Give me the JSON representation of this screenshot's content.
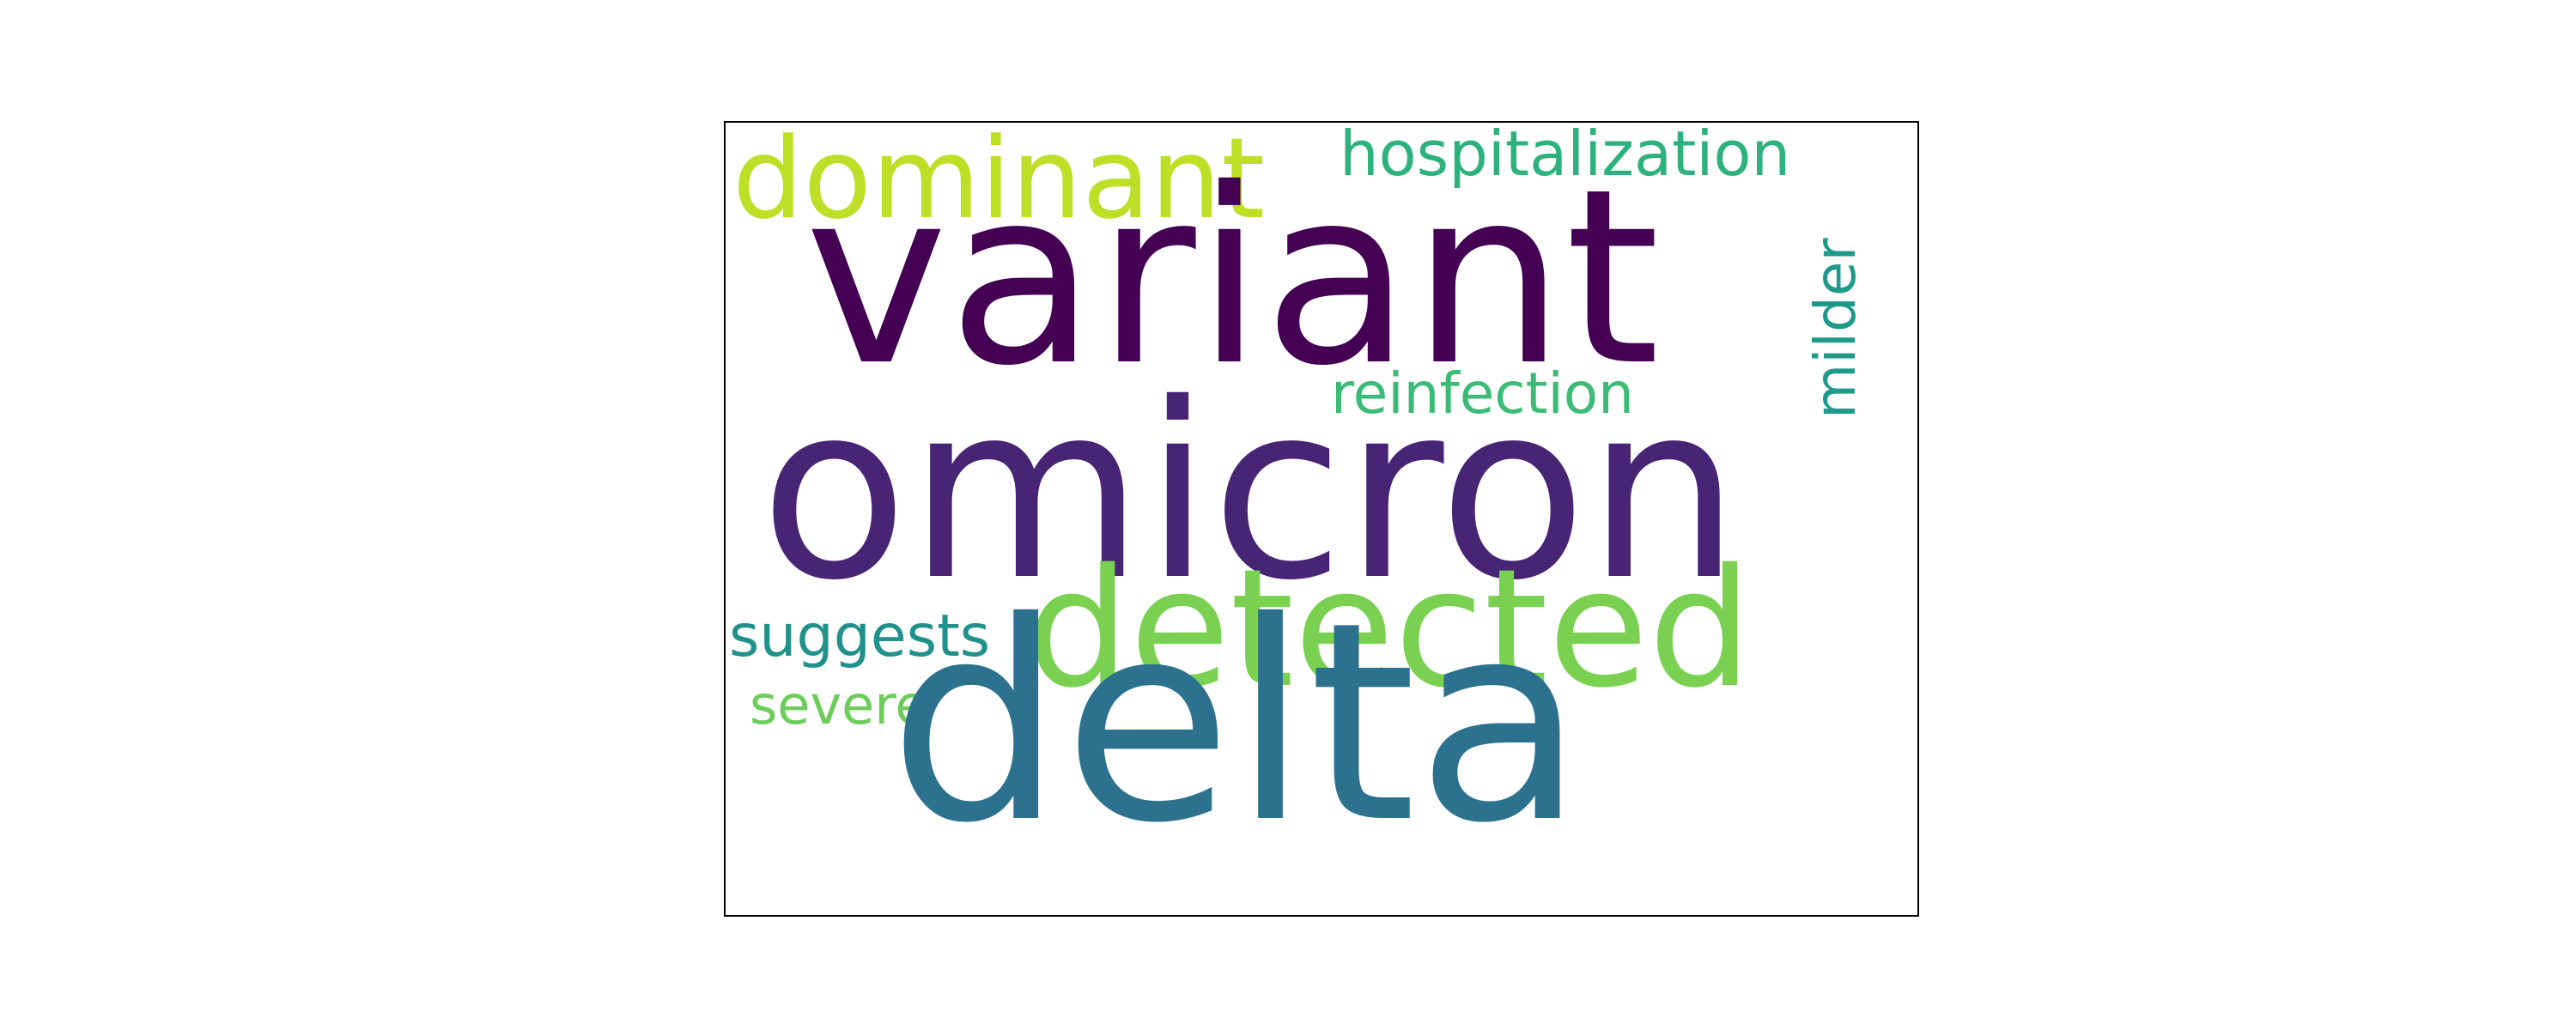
{
  "wordcloud": {
    "words": {
      "variant": {
        "text": "variant",
        "color": "#440154"
      },
      "omicron": {
        "text": "omicron",
        "color": "#482475"
      },
      "delta": {
        "text": "delta",
        "color": "#2c728e"
      },
      "detected": {
        "text": "detected",
        "color": "#7ad151"
      },
      "dominant": {
        "text": "dominant",
        "color": "#bddf26"
      },
      "hospitalization": {
        "text": "hospitalization",
        "color": "#2db27d"
      },
      "reinfection": {
        "text": "reinfection",
        "color": "#3bbb75"
      },
      "milder": {
        "text": "milder",
        "color": "#1f9a8a"
      },
      "suggests": {
        "text": "suggests",
        "color": "#21918c"
      },
      "severe": {
        "text": "severe",
        "color": "#6ccd5a"
      }
    }
  }
}
